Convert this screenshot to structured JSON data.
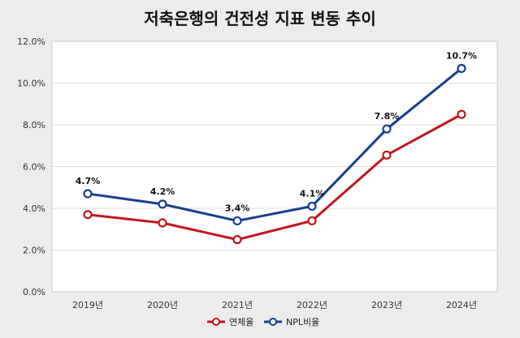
{
  "chart_data": {
    "type": "line",
    "title": "저축은행의 건전성 지표 변동 추이",
    "categories": [
      "2019년",
      "2020년",
      "2021년",
      "2022년",
      "2023년",
      "2024년"
    ],
    "ylim": [
      0,
      12
    ],
    "y_ticks": [
      "0.0%",
      "2.0%",
      "4.0%",
      "6.0%",
      "8.0%",
      "10.0%",
      "12.0%"
    ],
    "grid": true,
    "legend_position": "bottom",
    "series": [
      {
        "name": "연체율",
        "color": "#c0171c",
        "values": [
          3.7,
          3.3,
          2.5,
          3.4,
          6.55,
          8.5
        ]
      },
      {
        "name": "NPL비율",
        "color": "#173e8f",
        "values": [
          4.7,
          4.2,
          3.4,
          4.1,
          7.8,
          10.7
        ],
        "labels": [
          "4.7%",
          "4.2%",
          "3.4%",
          "4.1%",
          "7.8%",
          "10.7%"
        ]
      }
    ]
  }
}
